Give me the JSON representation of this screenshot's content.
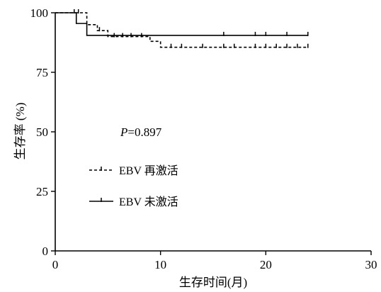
{
  "chart_data": {
    "type": "line",
    "subtype": "kaplan-meier",
    "title": "",
    "xlabel": "生存时间(月)",
    "ylabel": "生存率 (%)",
    "xlim": [
      0,
      30
    ],
    "ylim": [
      0,
      100
    ],
    "xticks": [
      0,
      10,
      20,
      30
    ],
    "yticks": [
      0,
      25,
      50,
      75,
      100
    ],
    "grid": false,
    "legend_position": "center-left",
    "annotation": {
      "prefix": "P",
      "value": "=0.897"
    },
    "series": [
      {
        "name": "EBV 再激活",
        "style": "dashed",
        "steps": [
          [
            0,
            100
          ],
          [
            3,
            100
          ],
          [
            3,
            95
          ],
          [
            4,
            95
          ],
          [
            4,
            92.5
          ],
          [
            5,
            92.5
          ],
          [
            5,
            90
          ],
          [
            9,
            90
          ],
          [
            9,
            88
          ],
          [
            10,
            88
          ],
          [
            10,
            85.5
          ],
          [
            24,
            85.5
          ]
        ],
        "censors": [
          [
            2.2,
            100
          ],
          [
            4.2,
            92.5
          ],
          [
            5.6,
            90
          ],
          [
            6.4,
            90
          ],
          [
            7.2,
            90
          ],
          [
            8.2,
            90
          ],
          [
            11,
            85.5
          ],
          [
            12,
            85.5
          ],
          [
            14,
            85.5
          ],
          [
            16,
            85.5
          ],
          [
            17,
            85.5
          ],
          [
            19,
            85.5
          ],
          [
            20,
            85.5
          ],
          [
            21,
            85.5
          ],
          [
            22,
            85.5
          ],
          [
            23,
            85.5
          ],
          [
            24,
            85.5
          ]
        ]
      },
      {
        "name": "EBV 未激活",
        "style": "solid",
        "steps": [
          [
            0,
            100
          ],
          [
            2,
            100
          ],
          [
            2,
            95.5
          ],
          [
            3,
            95.5
          ],
          [
            3,
            90.5
          ],
          [
            24,
            90.5
          ]
        ],
        "censors": [
          [
            1.8,
            100
          ],
          [
            16,
            90.5
          ],
          [
            19,
            90.5
          ],
          [
            20,
            90.5
          ],
          [
            22,
            90.5
          ],
          [
            24,
            90.5
          ]
        ]
      }
    ]
  }
}
